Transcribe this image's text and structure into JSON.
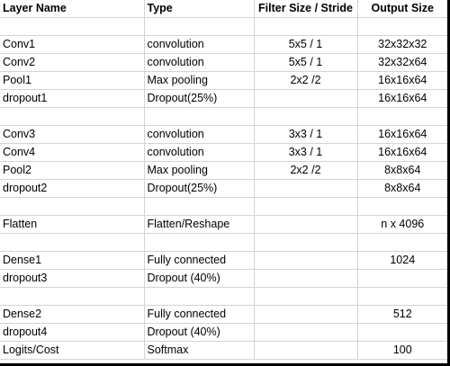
{
  "table": {
    "headers": [
      "Layer Name",
      "Type",
      "Filter Size / Stride",
      "Output Size"
    ],
    "rows": [
      [
        "",
        "",
        "",
        ""
      ],
      [
        "Conv1",
        "convolution",
        "5x5 / 1",
        "32x32x32"
      ],
      [
        "Conv2",
        "convolution",
        "5x5 / 1",
        "32x32x64"
      ],
      [
        "Pool1",
        "Max pooling",
        "2x2 /2",
        "16x16x64"
      ],
      [
        "dropout1",
        "Dropout(25%)",
        "",
        "16x16x64"
      ],
      [
        "",
        "",
        "",
        ""
      ],
      [
        "Conv3",
        "convolution",
        "3x3 / 1",
        "16x16x64"
      ],
      [
        "Conv4",
        "convolution",
        "3x3 / 1",
        "16x16x64"
      ],
      [
        "Pool2",
        "Max pooling",
        "2x2 /2",
        "8x8x64"
      ],
      [
        "dropout2",
        "Dropout(25%)",
        "",
        "8x8x64"
      ],
      [
        "",
        "",
        "",
        ""
      ],
      [
        "Flatten",
        "Flatten/Reshape",
        "",
        "n x 4096"
      ],
      [
        "",
        "",
        "",
        ""
      ],
      [
        "Dense1",
        "Fully connected",
        "",
        "1024"
      ],
      [
        "dropout3",
        "Dropout (40%)",
        "",
        ""
      ],
      [
        "",
        "",
        "",
        ""
      ],
      [
        "Dense2",
        "Fully connected",
        "",
        "512"
      ],
      [
        "dropout4",
        "Dropout (40%)",
        "",
        ""
      ],
      [
        "Logits/Cost",
        "Softmax",
        "",
        "100"
      ]
    ]
  }
}
